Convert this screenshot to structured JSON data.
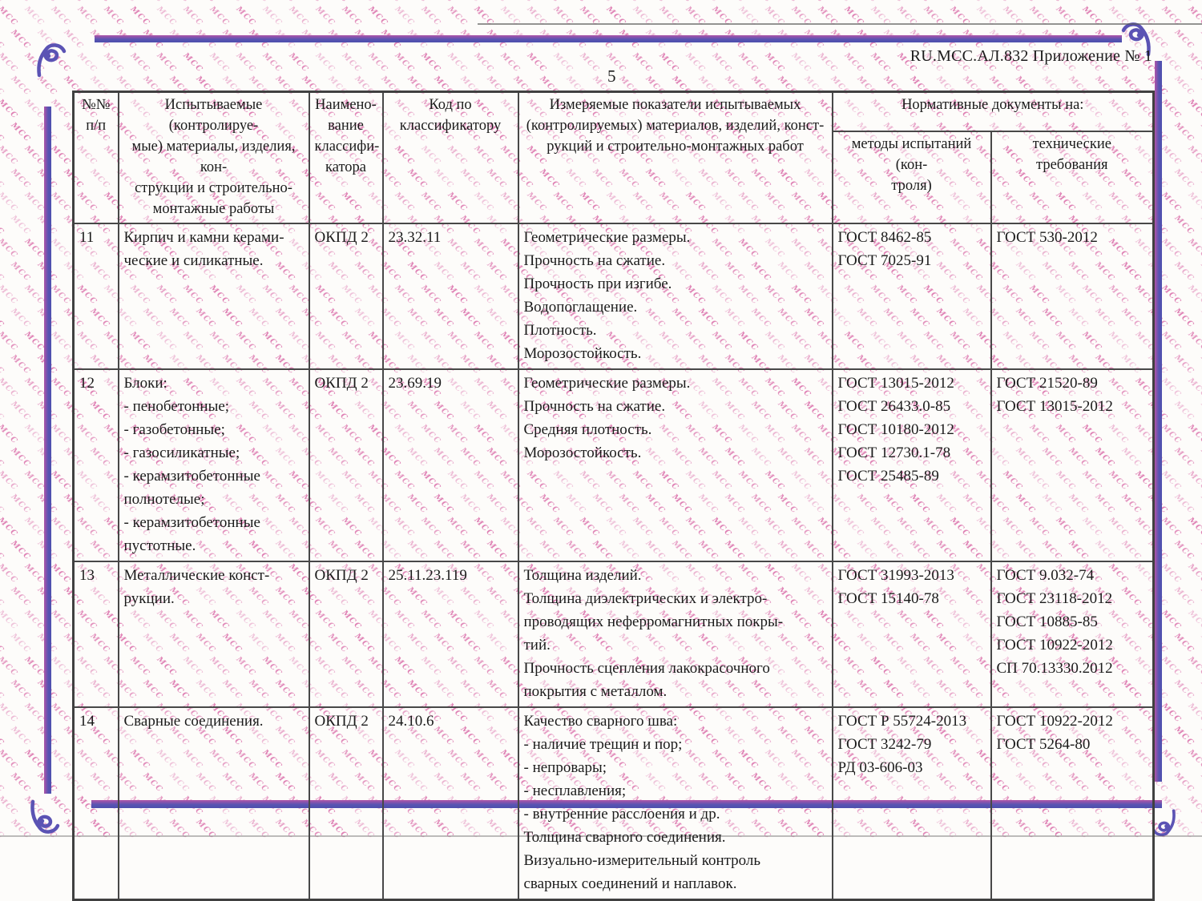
{
  "page": {
    "doc_ref": "RU.МСС.АЛ.832 Приложение № 1",
    "page_number": "5"
  },
  "watermark": {
    "text": "МСС",
    "color": "#d4549b"
  },
  "frame_color": "#5a54b2",
  "table": {
    "headers": {
      "num": "№№\nп/п",
      "materials": "Испытываемые (контролируе-\nмые) материалы, изделия, кон-\nструкции и строительно-\nмонтажные работы",
      "classifier": "Наимено-\nвание\nклассифи-\nкатора",
      "code": "Код по\nклассификатору",
      "indicators": "Измеряемые показатели испытываемых\n(контролируемых) материалов, изделий, конст-\nрукций и строительно-монтажных работ",
      "normative": "Нормативные документы на:",
      "methods": "методы испытаний (кон-\nтроля)",
      "tech": "технические требования"
    },
    "rows": [
      {
        "num": "11",
        "materials": "Кирпич и камни керами-\nческие и силикатные.",
        "classifier": "ОКПД 2",
        "code": "23.32.11",
        "indicators": "Геометрические размеры.\nПрочность на сжатие.\nПрочность при изгибе.\nВодопоглащение.\nПлотность.\nМорозостойкость.",
        "methods": "ГОСТ 8462-85\nГОСТ 7025-91",
        "tech": "ГОСТ 530-2012"
      },
      {
        "num": "12",
        "materials": "Блоки:\n- пенобетонные;\n- газобетонные;\n- газосиликатные;\n- керамзитобетонные\nполнотелые;\n- керамзитобетонные\nпустотные.",
        "classifier": "ОКПД 2",
        "code": "23.69.19",
        "indicators": "Геометрические размеры.\nПрочность на сжатие.\nСредняя плотность.\nМорозостойкость.",
        "methods": "ГОСТ 13015-2012\nГОСТ 26433.0-85\nГОСТ 10180-2012\nГОСТ 12730.1-78\nГОСТ 25485-89",
        "tech": "ГОСТ 21520-89\nГОСТ 13015-2012"
      },
      {
        "num": "13",
        "materials": "Металлические конст-\nрукции.",
        "classifier": "ОКПД 2",
        "code": "25.11.23.119",
        "indicators": "Толщина изделий.\nТолщина диэлектрических и электро-\nпроводящих неферромагнитных покры-\nтий.\nПрочность сцепления лакокрасочного\nпокрытия с металлом.",
        "methods": "ГОСТ 31993-2013\nГОСТ 15140-78",
        "tech": "ГОСТ 9.032-74\nГОСТ 23118-2012\nГОСТ 10885-85\nГОСТ 10922-2012\nСП 70.13330.2012"
      },
      {
        "num": "14",
        "materials": "Сварные соединения.",
        "classifier": "ОКПД 2",
        "code": "24.10.6",
        "indicators": "Качество сварного шва:\n- наличие трещин и пор;\n- непровары;\n- несплавления;\n- внутренние расслоения и др.\nТолщина сварного соединения.\nВизуально-измерительный контроль\nсварных соединений и наплавок.",
        "methods": "ГОСТ Р 55724-2013\nГОСТ 3242-79\nРД 03-606-03",
        "tech": "ГОСТ 10922-2012\nГОСТ 5264-80"
      }
    ]
  }
}
